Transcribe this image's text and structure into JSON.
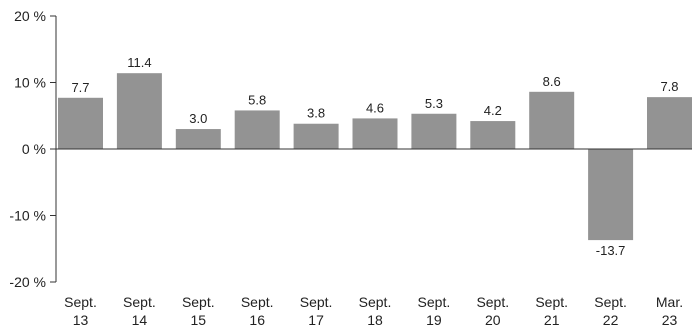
{
  "chart_data": {
    "type": "bar",
    "categories": [
      [
        "Sept.",
        "13"
      ],
      [
        "Sept.",
        "14"
      ],
      [
        "Sept.",
        "15"
      ],
      [
        "Sept.",
        "16"
      ],
      [
        "Sept.",
        "17"
      ],
      [
        "Sept.",
        "18"
      ],
      [
        "Sept.",
        "19"
      ],
      [
        "Sept.",
        "20"
      ],
      [
        "Sept.",
        "21"
      ],
      [
        "Sept.",
        "22"
      ],
      [
        "Mar.",
        "23"
      ]
    ],
    "values": [
      7.7,
      11.4,
      3.0,
      5.8,
      3.8,
      4.6,
      5.3,
      4.2,
      8.6,
      -13.7,
      7.8
    ],
    "data_labels": [
      "7.7",
      "11.4",
      "3.0",
      "5.8",
      "3.8",
      "4.6",
      "5.3",
      "4.2",
      "8.6",
      "-13.7",
      "7.8"
    ],
    "yticks": [
      20,
      10,
      0,
      -10,
      -20
    ],
    "ytick_labels": [
      "20 %",
      "10 %",
      "0 %",
      "-10 %",
      "-20 %"
    ],
    "ylim": [
      -20,
      20
    ],
    "grid": false,
    "bar_color": "#939393",
    "axis_color": "#333333",
    "title": "",
    "xlabel": "",
    "ylabel": ""
  }
}
